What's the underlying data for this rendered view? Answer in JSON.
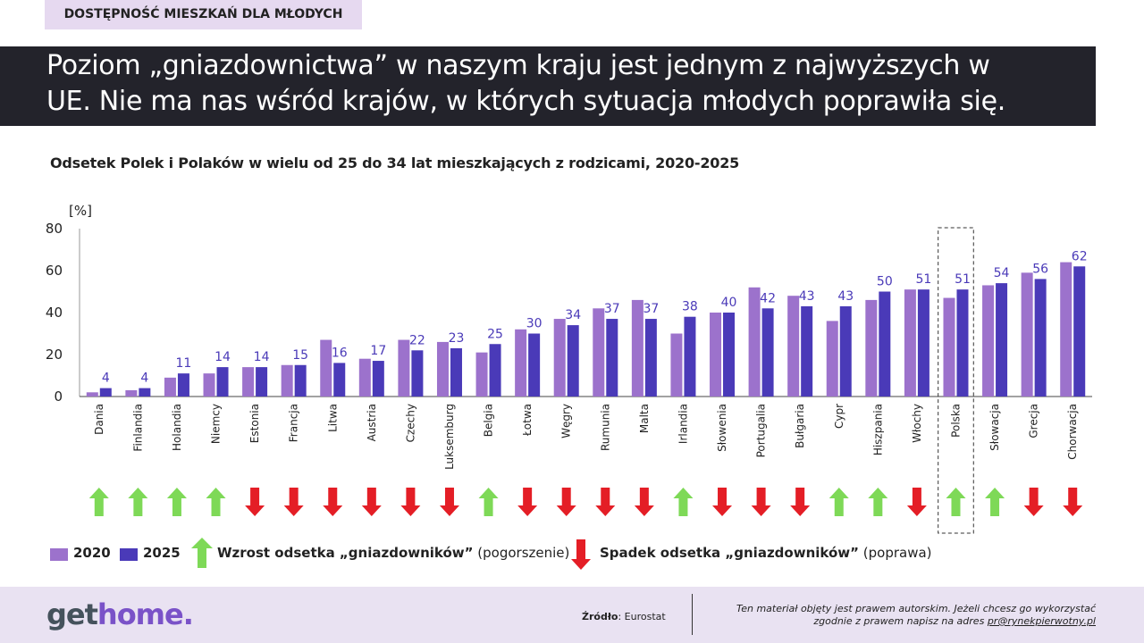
{
  "tag": "DOSTĘPNOŚĆ MIESZKAŃ DLA MŁODYCH",
  "headline": {
    "line1": "Poziom „gniazdownictwa” w naszym kraju jest jednym z najwyższych w",
    "line2": "UE. Nie ma nas wśród krajów, w których sytuacja młodych poprawiła się."
  },
  "colors": {
    "c2020": "#9c72cc",
    "c2025": "#4a3ab8",
    "up": "#7ed957",
    "down": "#e41e26",
    "label": "#4a3ab8"
  },
  "legend": {
    "y2020": "2020",
    "y2025": "2025",
    "up_bold": "Wzrost odsetka „gniazdowników”",
    "up_note": " (pogorszenie)",
    "down_bold": "Spadek odsetka „gniazdowników”",
    "down_note": " (poprawa)"
  },
  "chart_data": {
    "type": "bar",
    "title": "Odsetek Polek i Polaków w wielu od 25 do 34 lat mieszkających z rodzicami, 2020-2025",
    "ylabel": "[%]",
    "ylim": [
      0,
      80
    ],
    "yticks": [
      0,
      20,
      40,
      60,
      80
    ],
    "highlight": "Polska",
    "categories": [
      "Dania",
      "Finlandia",
      "Holandia",
      "Niemcy",
      "Estonia",
      "Francja",
      "Litwa",
      "Austria",
      "Czechy",
      "Luksemburg",
      "Belgia",
      "Łotwa",
      "Węgry",
      "Rumunia",
      "Malta",
      "Irlandia",
      "Słowenia",
      "Portugalia",
      "Bułgaria",
      "Cypr",
      "Hiszpania",
      "Włochy",
      "Polska",
      "Słowacja",
      "Grecja",
      "Chorwacja"
    ],
    "series": [
      {
        "name": "2020",
        "values": [
          2,
          3,
          9,
          11,
          14,
          15,
          27,
          18,
          27,
          26,
          21,
          32,
          37,
          42,
          46,
          30,
          40,
          52,
          48,
          36,
          46,
          51,
          47,
          53,
          59,
          64
        ]
      },
      {
        "name": "2025",
        "values": [
          4,
          4,
          11,
          14,
          14,
          15,
          16,
          17,
          22,
          23,
          25,
          30,
          34,
          37,
          37,
          38,
          40,
          42,
          43,
          43,
          50,
          51,
          51,
          54,
          56,
          62
        ]
      }
    ],
    "trend": [
      "up",
      "up",
      "up",
      "up",
      "down",
      "down",
      "down",
      "down",
      "down",
      "down",
      "up",
      "down",
      "down",
      "down",
      "down",
      "up",
      "down",
      "down",
      "down",
      "up",
      "up",
      "down",
      "up",
      "up",
      "down",
      "down"
    ]
  },
  "footer": {
    "logo_a": "get",
    "logo_b": "home.",
    "source_label": "Źródło",
    "source_value": ": Eurostat",
    "copyright_line1": "Ten materiał objęty jest prawem autorskim. Jeżeli chcesz go wykorzystać",
    "copyright_line2": "zgodnie z prawem napisz na adres ",
    "copyright_email": "pr@rynekpierwotny.pl"
  }
}
